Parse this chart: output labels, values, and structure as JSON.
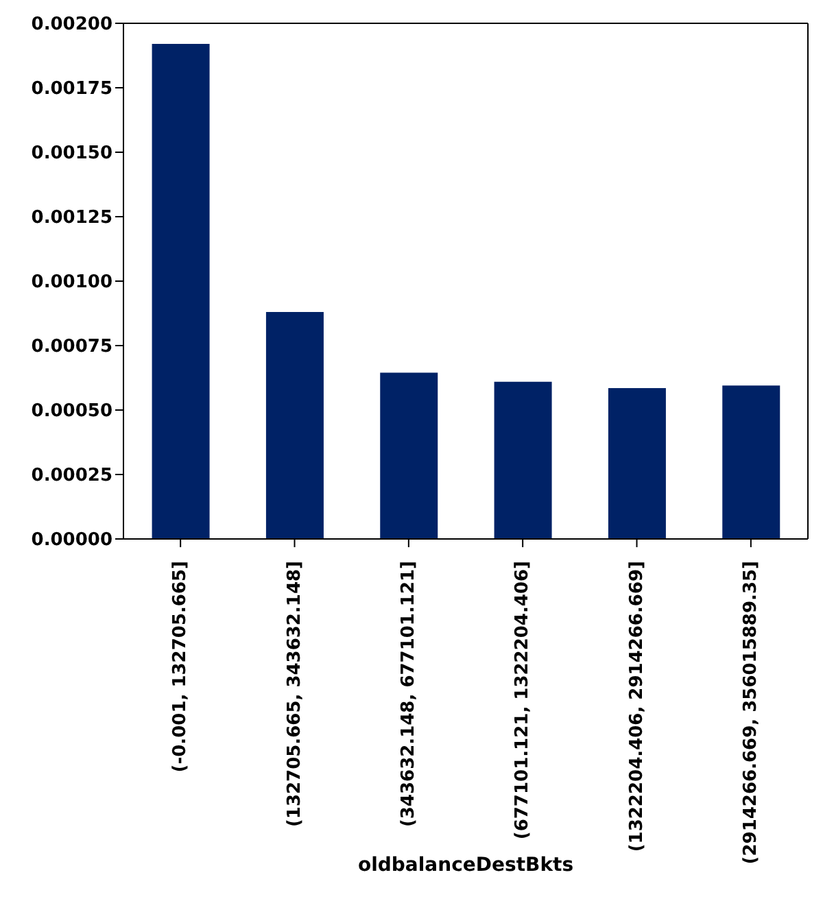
{
  "chart_data": {
    "type": "bar",
    "xlabel": "oldbalanceDestBkts",
    "categories": [
      "(-0.001, 132705.665]",
      "(132705.665, 343632.148]",
      "(343632.148, 677101.121]",
      "(677101.121, 1322204.406]",
      "(1322204.406, 2914266.669]",
      "(2914266.669, 356015889.35]"
    ],
    "values": [
      0.00192,
      0.00088,
      0.000645,
      0.00061,
      0.000585,
      0.000595
    ],
    "color": "#002266",
    "ylim": [
      0,
      0.002
    ],
    "yticks": [
      {
        "value": 0,
        "label": "0.00000"
      },
      {
        "value": 0.00025,
        "label": "0.00025"
      },
      {
        "value": 0.0005,
        "label": "0.00050"
      },
      {
        "value": 0.00075,
        "label": "0.00075"
      },
      {
        "value": 0.001,
        "label": "0.00100"
      },
      {
        "value": 0.00125,
        "label": "0.00125"
      },
      {
        "value": 0.0015,
        "label": "0.00150"
      },
      {
        "value": 0.00175,
        "label": "0.00175"
      },
      {
        "value": 0.002,
        "label": "0.00200"
      }
    ],
    "grid": false,
    "legend": false
  }
}
